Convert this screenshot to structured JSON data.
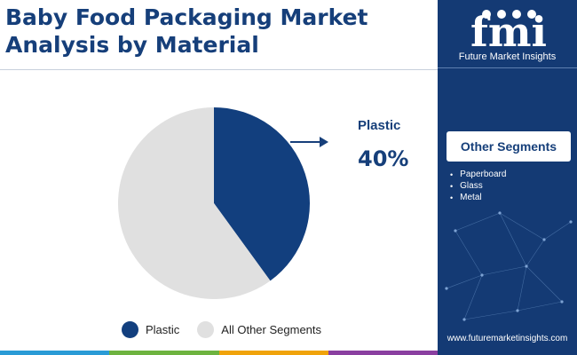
{
  "title": "Baby Food Packaging Market Analysis by Material",
  "callout": {
    "name": "Plastic",
    "value": "40%"
  },
  "legend": [
    {
      "label": "Plastic",
      "color": "#123f7e"
    },
    {
      "label": "All Other Segments",
      "color": "#e0e0e0"
    }
  ],
  "chart_data": {
    "type": "pie",
    "title": "Baby Food Packaging Market Analysis by Material",
    "labels": [
      "Plastic",
      "All Other Segments"
    ],
    "values": [
      40,
      60
    ],
    "colors": [
      "#123f7e",
      "#e0e0e0"
    ],
    "start_angle": "12 o'clock",
    "direction": "clockwise",
    "legend_position": "bottom"
  },
  "sidebar": {
    "brand_name": "Future Market Insights",
    "logo_text": "fmi",
    "segments_heading": "Other Segments",
    "segments": [
      "Paperboard",
      "Glass",
      "Metal"
    ],
    "url": "www.futuremarketinsights.com",
    "background_color": "#143a74"
  },
  "bottom_bar_colors": [
    "#2a9bd6",
    "#6db33f",
    "#f0a30a",
    "#8a3fa0"
  ]
}
